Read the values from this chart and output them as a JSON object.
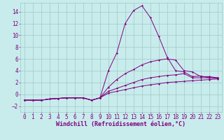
{
  "background_color": "#c8ecec",
  "grid_color": "#a0c8c8",
  "line_color": "#800080",
  "xlim": [
    -0.5,
    23.5
  ],
  "ylim": [
    -3,
    15.5
  ],
  "xlabel": "Windchill (Refroidissement éolien,°C)",
  "xlabel_fontsize": 6,
  "xticks": [
    0,
    1,
    2,
    3,
    4,
    5,
    6,
    7,
    8,
    9,
    10,
    11,
    12,
    13,
    14,
    15,
    16,
    17,
    18,
    19,
    20,
    21,
    22,
    23
  ],
  "yticks": [
    -2,
    0,
    2,
    4,
    6,
    8,
    10,
    12,
    14
  ],
  "tick_fontsize": 5.5,
  "series": [
    {
      "x": [
        0,
        1,
        2,
        3,
        4,
        5,
        6,
        7,
        8,
        9,
        10,
        11,
        12,
        13,
        14,
        15,
        16,
        17,
        18,
        19,
        20,
        21,
        22,
        23
      ],
      "y": [
        -1,
        -1,
        -1,
        -0.8,
        -0.7,
        -0.6,
        -0.6,
        -0.6,
        -1.0,
        -0.6,
        4,
        7,
        12,
        14.2,
        15,
        13,
        9.8,
        6.3,
        4,
        3.8,
        3,
        3.1,
        2.8,
        2.8
      ]
    },
    {
      "x": [
        0,
        1,
        2,
        3,
        4,
        5,
        6,
        7,
        8,
        9,
        10,
        11,
        12,
        13,
        14,
        15,
        16,
        17,
        18,
        19,
        20,
        21,
        22,
        23
      ],
      "y": [
        -1,
        -1,
        -1,
        -0.8,
        -0.7,
        -0.6,
        -0.6,
        -0.6,
        -1.0,
        -0.6,
        1.2,
        2.5,
        3.5,
        4.2,
        5,
        5.5,
        5.8,
        6,
        5.8,
        4,
        3.8,
        3,
        3,
        2.8
      ]
    },
    {
      "x": [
        0,
        1,
        2,
        3,
        4,
        5,
        6,
        7,
        8,
        9,
        10,
        11,
        12,
        13,
        14,
        15,
        16,
        17,
        18,
        19,
        20,
        21,
        22,
        23
      ],
      "y": [
        -1,
        -1,
        -1,
        -0.8,
        -0.7,
        -0.6,
        -0.6,
        -0.6,
        -1.0,
        -0.6,
        0.5,
        1.0,
        1.5,
        2.0,
        2.5,
        2.8,
        3.0,
        3.2,
        3.3,
        3.5,
        2.8,
        2.8,
        2.8,
        2.7
      ]
    },
    {
      "x": [
        0,
        1,
        2,
        3,
        4,
        5,
        6,
        7,
        8,
        9,
        10,
        11,
        12,
        13,
        14,
        15,
        16,
        17,
        18,
        19,
        20,
        21,
        22,
        23
      ],
      "y": [
        -1,
        -1,
        -1,
        -0.8,
        -0.7,
        -0.6,
        -0.6,
        -0.6,
        -1.0,
        -0.6,
        0.2,
        0.5,
        0.8,
        1.1,
        1.4,
        1.6,
        1.8,
        2.0,
        2.1,
        2.2,
        2.3,
        2.4,
        2.5,
        2.6
      ]
    }
  ]
}
